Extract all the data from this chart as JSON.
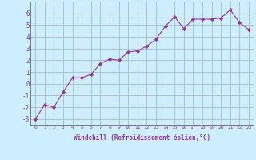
{
  "x": [
    0,
    1,
    2,
    3,
    4,
    5,
    6,
    7,
    8,
    9,
    10,
    11,
    12,
    13,
    14,
    15,
    16,
    17,
    18,
    19,
    20,
    21,
    22,
    23
  ],
  "y": [
    -3.0,
    -1.8,
    -2.0,
    -0.7,
    0.5,
    0.5,
    0.8,
    1.7,
    2.1,
    2.0,
    2.7,
    2.8,
    3.2,
    3.8,
    4.9,
    5.7,
    4.7,
    5.5,
    5.5,
    5.5,
    5.6,
    6.3,
    5.2,
    4.6
  ],
  "line_color": "#993399",
  "marker": "D",
  "marker_size": 2.2,
  "bg_color": "#cceeff",
  "grid_color": "#aabbbb",
  "xlabel": "Windchill (Refroidissement éolien,°C)",
  "xlabel_color": "#993399",
  "tick_color": "#993399",
  "ylim": [
    -3.5,
    7.0
  ],
  "xlim": [
    -0.5,
    23.5
  ],
  "yticks": [
    -3,
    -2,
    -1,
    0,
    1,
    2,
    3,
    4,
    5,
    6
  ],
  "xticks": [
    0,
    1,
    2,
    3,
    4,
    5,
    6,
    7,
    8,
    9,
    10,
    11,
    12,
    13,
    14,
    15,
    16,
    17,
    18,
    19,
    20,
    21,
    22,
    23
  ]
}
